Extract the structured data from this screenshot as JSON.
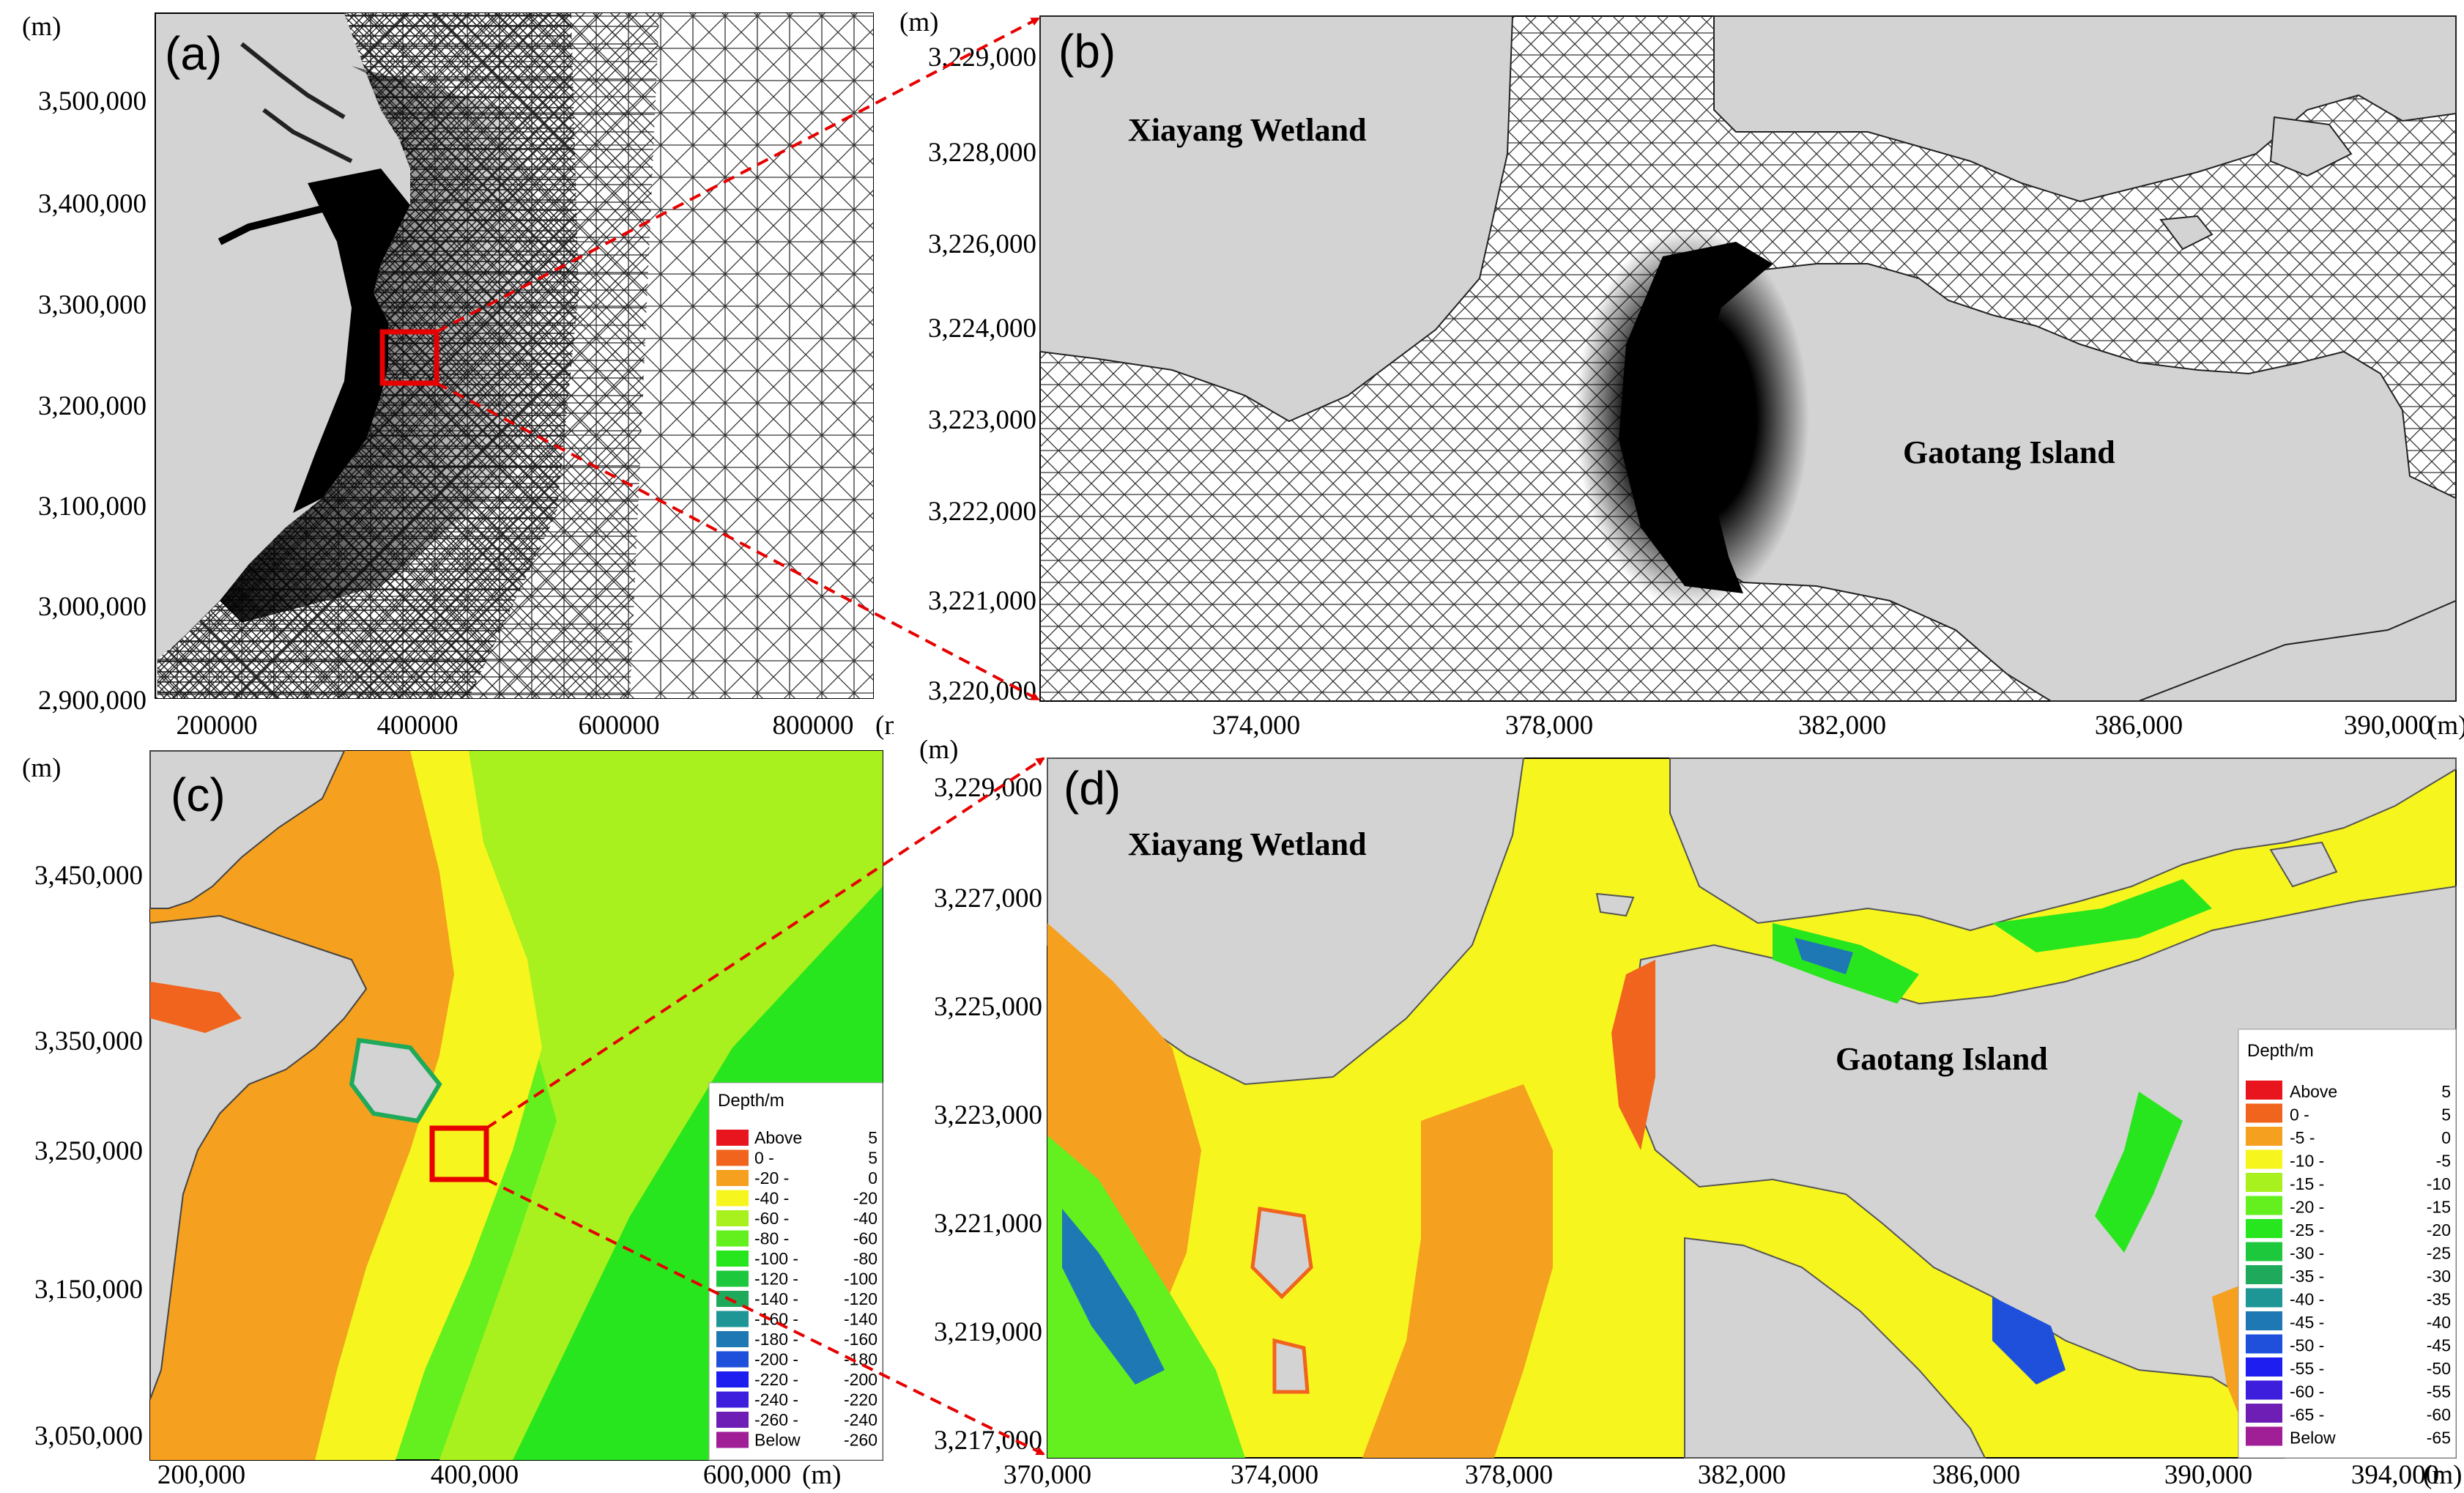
{
  "panels": {
    "a": {
      "label": "(a)",
      "unit_y": "(m)",
      "unit_x": "(m)",
      "y_ticks": [
        "3,500,000",
        "3,400,000",
        "3,300,000",
        "3,200,000",
        "3,100,000",
        "3,000,000",
        "2,900,000"
      ],
      "x_ticks": [
        "200000",
        "400000",
        "600000",
        "800000"
      ]
    },
    "b": {
      "label": "(b)",
      "unit_y": "(m)",
      "unit_x": "(m)",
      "y_ticks": [
        "3,229,000",
        "3,228,000",
        "3,226,000",
        "3,224,000",
        "3,223,000",
        "3,222,000",
        "3,221,000",
        "3,220,000"
      ],
      "x_ticks": [
        "374,000",
        "378,000",
        "382,000",
        "386,000",
        "390,000"
      ],
      "place_1": "Xiayang Wetland",
      "place_2": "Gaotang Island"
    },
    "c": {
      "label": "(c)",
      "unit_y": "(m)",
      "unit_x": "(m)",
      "y_ticks": [
        "3,450,000",
        "3,350,000",
        "3,250,000",
        "3,150,000",
        "3,050,000"
      ],
      "x_ticks": [
        "200,000",
        "400,000",
        "600,000"
      ],
      "legend_title": "Depth/m",
      "legend": [
        {
          "from": "Above",
          "to": "5",
          "color": "#e8141e"
        },
        {
          "from": "0 -",
          "to": "5",
          "color": "#f0641e"
        },
        {
          "from": "-20 -",
          "to": "0",
          "color": "#f5a01e"
        },
        {
          "from": "-40 -",
          "to": "-20",
          "color": "#f7f51e"
        },
        {
          "from": "-60 -",
          "to": "-40",
          "color": "#a8f01e"
        },
        {
          "from": "-80 -",
          "to": "-60",
          "color": "#64f01e"
        },
        {
          "from": "-100 -",
          "to": "-80",
          "color": "#28e61e"
        },
        {
          "from": "-120 -",
          "to": "-100",
          "color": "#1ec83c"
        },
        {
          "from": "-140 -",
          "to": "-120",
          "color": "#1eaa5a"
        },
        {
          "from": "-160 -",
          "to": "-140",
          "color": "#1e9696"
        },
        {
          "from": "-180 -",
          "to": "-160",
          "color": "#1e78b4"
        },
        {
          "from": "-200 -",
          "to": "-180",
          "color": "#1e50dc"
        },
        {
          "from": "-220 -",
          "to": "-200",
          "color": "#1e1ef0"
        },
        {
          "from": "-240 -",
          "to": "-220",
          "color": "#3c1edc"
        },
        {
          "from": "-260 -",
          "to": "-240",
          "color": "#6e1eb4"
        },
        {
          "from": "Below",
          "to": "-260",
          "color": "#a01e96"
        }
      ]
    },
    "d": {
      "label": "(d)",
      "unit_y": "(m)",
      "unit_x": "(m)",
      "y_ticks": [
        "3,229,000",
        "3,227,000",
        "3,225,000",
        "3,223,000",
        "3,221,000",
        "3,219,000",
        "3,217,000"
      ],
      "x_ticks": [
        "370,000",
        "374,000",
        "378,000",
        "382,000",
        "386,000",
        "390,000",
        "394,000"
      ],
      "place_1": "Xiayang Wetland",
      "place_2": "Gaotang Island",
      "legend_title": "Depth/m",
      "legend": [
        {
          "from": "Above",
          "to": "5",
          "color": "#e8141e"
        },
        {
          "from": "0 -",
          "to": "5",
          "color": "#f0641e"
        },
        {
          "from": "-5 -",
          "to": "0",
          "color": "#f5a01e"
        },
        {
          "from": "-10 -",
          "to": "-5",
          "color": "#f7f51e"
        },
        {
          "from": "-15 -",
          "to": "-10",
          "color": "#a8f01e"
        },
        {
          "from": "-20 -",
          "to": "-15",
          "color": "#64f01e"
        },
        {
          "from": "-25 -",
          "to": "-20",
          "color": "#28e61e"
        },
        {
          "from": "-30 -",
          "to": "-25",
          "color": "#1ec83c"
        },
        {
          "from": "-35 -",
          "to": "-30",
          "color": "#1eaa5a"
        },
        {
          "from": "-40 -",
          "to": "-35",
          "color": "#1e9696"
        },
        {
          "from": "-45 -",
          "to": "-40",
          "color": "#1e78b4"
        },
        {
          "from": "-50 -",
          "to": "-45",
          "color": "#1e50dc"
        },
        {
          "from": "-55 -",
          "to": "-50",
          "color": "#1e1ef0"
        },
        {
          "from": "-60 -",
          "to": "-55",
          "color": "#3c1edc"
        },
        {
          "from": "-65 -",
          "to": "-60",
          "color": "#6e1eb4"
        },
        {
          "from": "Below",
          "to": "-65",
          "color": "#a01e96"
        }
      ]
    }
  },
  "colors": {
    "land": "#d3d3d3",
    "mesh_line": "#222222",
    "inset_box": "#e60000",
    "zoom_arrow": "#e60000"
  }
}
